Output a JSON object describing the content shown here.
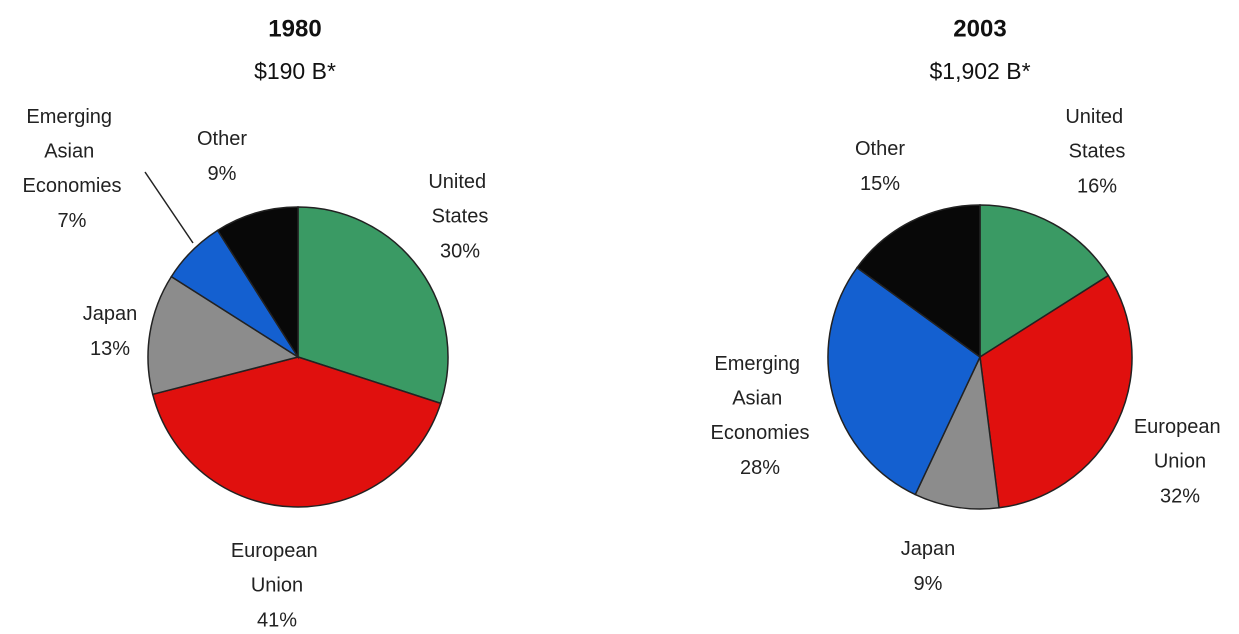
{
  "chart_data": [
    {
      "type": "pie",
      "title": "1980",
      "subtitle": "$190 B*",
      "categories": [
        "United States",
        "European Union",
        "Japan",
        "Emerging Asian Economies",
        "Other"
      ],
      "values": [
        30,
        41,
        13,
        7,
        9
      ],
      "value_labels": [
        "30%",
        "41%",
        "13%",
        "7%",
        "9%"
      ],
      "colors": [
        "#3a9a64",
        "#e0100e",
        "#8c8c8c",
        "#1460d0",
        "#080808"
      ]
    },
    {
      "type": "pie",
      "title": "2003",
      "subtitle": "$1,902 B*",
      "categories": [
        "United States",
        "European Union",
        "Japan",
        "Emerging Asian Economies",
        "Other"
      ],
      "values": [
        16,
        32,
        9,
        28,
        15
      ],
      "value_labels": [
        "16%",
        "32%",
        "9%",
        "28%",
        "15%"
      ],
      "colors": [
        "#3a9a64",
        "#e0100e",
        "#8c8c8c",
        "#1460d0",
        "#080808"
      ]
    }
  ]
}
